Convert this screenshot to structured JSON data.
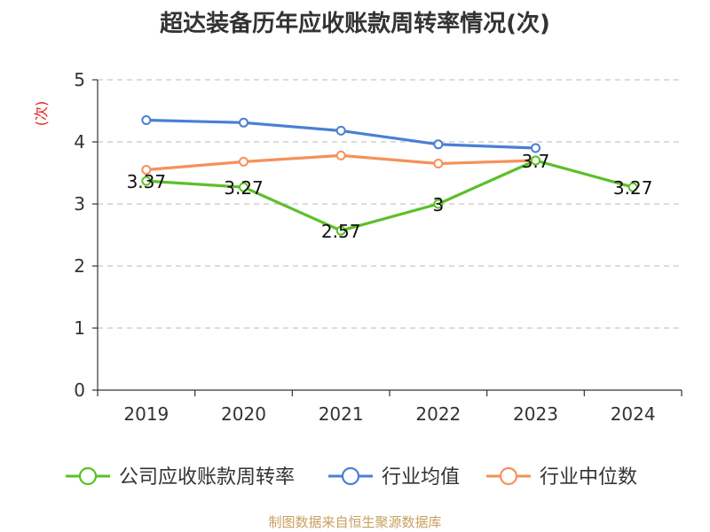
{
  "title": "超达装备历年应收账款周转率情况(次)",
  "source": "制图数据来自恒生聚源数据库",
  "chart_data": {
    "type": "line",
    "title": "超达装备历年应收账款周转率情况(次)",
    "ylabel": "(次)",
    "ylabel_color": "#e02020",
    "categories": [
      "2019",
      "2020",
      "2021",
      "2022",
      "2023",
      "2024"
    ],
    "ylim": [
      0,
      5
    ],
    "yticks": [
      0,
      1,
      2,
      3,
      4,
      5
    ],
    "grid": true,
    "legend_position": "bottom",
    "series": [
      {
        "name": "公司应收账款周转率",
        "color": "#5cbf2a",
        "values": [
          3.37,
          3.27,
          2.57,
          3,
          3.7,
          3.27
        ],
        "labels": [
          "3.37",
          "3.27",
          "2.57",
          "3",
          "3.7",
          "3.27"
        ]
      },
      {
        "name": "行业均值",
        "color": "#4a7fd4",
        "values": [
          4.35,
          4.31,
          4.18,
          3.96,
          3.9,
          null
        ]
      },
      {
        "name": "行业中位数",
        "color": "#f5915a",
        "values": [
          3.55,
          3.68,
          3.78,
          3.65,
          3.7,
          null
        ]
      }
    ]
  }
}
